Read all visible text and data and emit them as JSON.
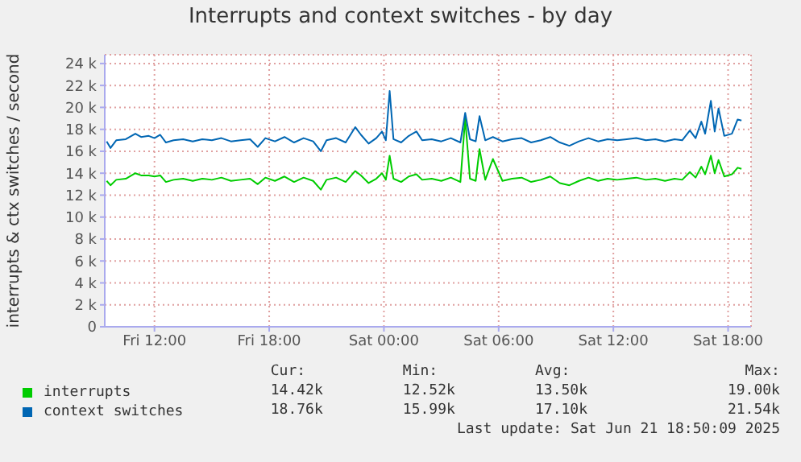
{
  "chart_data": {
    "type": "line",
    "title": "Interrupts and context switches - by day",
    "ylabel": "interrupts & ctx switches / second",
    "x": [
      "2025-06-20T09:30",
      "2025-06-20T09:42",
      "2025-06-20T10:00",
      "2025-06-20T10:30",
      "2025-06-20T11:00",
      "2025-06-20T11:18",
      "2025-06-20T11:42",
      "2025-06-20T12:00",
      "2025-06-20T12:18",
      "2025-06-20T12:36",
      "2025-06-20T13:00",
      "2025-06-20T13:30",
      "2025-06-20T14:00",
      "2025-06-20T14:30",
      "2025-06-20T15:00",
      "2025-06-20T15:30",
      "2025-06-20T16:00",
      "2025-06-20T16:30",
      "2025-06-20T17:00",
      "2025-06-20T17:24",
      "2025-06-20T17:48",
      "2025-06-20T18:18",
      "2025-06-20T18:48",
      "2025-06-20T19:18",
      "2025-06-20T19:48",
      "2025-06-20T20:18",
      "2025-06-20T20:42",
      "2025-06-20T21:00",
      "2025-06-20T21:30",
      "2025-06-20T22:00",
      "2025-06-20T22:30",
      "2025-06-20T22:48",
      "2025-06-20T23:12",
      "2025-06-20T23:36",
      "2025-06-20T23:54",
      "2025-06-21T00:06",
      "2025-06-21T00:18",
      "2025-06-21T00:30",
      "2025-06-21T00:54",
      "2025-06-21T01:18",
      "2025-06-21T01:42",
      "2025-06-21T02:00",
      "2025-06-21T02:30",
      "2025-06-21T03:00",
      "2025-06-21T03:30",
      "2025-06-21T04:00",
      "2025-06-21T04:15",
      "2025-06-21T04:30",
      "2025-06-21T04:48",
      "2025-06-21T05:00",
      "2025-06-21T05:18",
      "2025-06-21T05:42",
      "2025-06-21T06:12",
      "2025-06-21T06:42",
      "2025-06-21T07:12",
      "2025-06-21T07:42",
      "2025-06-21T08:12",
      "2025-06-21T08:42",
      "2025-06-21T09:12",
      "2025-06-21T09:42",
      "2025-06-21T10:12",
      "2025-06-21T10:42",
      "2025-06-21T11:12",
      "2025-06-21T11:42",
      "2025-06-21T12:12",
      "2025-06-21T12:42",
      "2025-06-21T13:12",
      "2025-06-21T13:42",
      "2025-06-21T14:12",
      "2025-06-21T14:42",
      "2025-06-21T15:12",
      "2025-06-21T15:36",
      "2025-06-21T16:00",
      "2025-06-21T16:18",
      "2025-06-21T16:36",
      "2025-06-21T16:48",
      "2025-06-21T17:06",
      "2025-06-21T17:18",
      "2025-06-21T17:30",
      "2025-06-21T17:48",
      "2025-06-21T18:12",
      "2025-06-21T18:30",
      "2025-06-21T18:42"
    ],
    "series": [
      {
        "name": "interrupts",
        "color": "#00cc00",
        "values": [
          13.3,
          12.9,
          13.4,
          13.5,
          14.0,
          13.8,
          13.8,
          13.7,
          13.8,
          13.2,
          13.4,
          13.5,
          13.3,
          13.5,
          13.4,
          13.6,
          13.3,
          13.4,
          13.5,
          13.0,
          13.6,
          13.3,
          13.7,
          13.2,
          13.6,
          13.3,
          12.5,
          13.4,
          13.6,
          13.2,
          14.2,
          13.8,
          13.1,
          13.5,
          14.0,
          13.4,
          15.6,
          13.5,
          13.2,
          13.7,
          13.9,
          13.4,
          13.5,
          13.3,
          13.6,
          13.2,
          19.0,
          13.5,
          13.3,
          16.2,
          13.4,
          15.3,
          13.3,
          13.5,
          13.6,
          13.2,
          13.4,
          13.7,
          13.1,
          12.9,
          13.3,
          13.6,
          13.3,
          13.5,
          13.4,
          13.5,
          13.6,
          13.4,
          13.5,
          13.3,
          13.5,
          13.4,
          14.1,
          13.6,
          14.6,
          13.9,
          15.6,
          14.0,
          15.2,
          13.7,
          13.9,
          14.5,
          14.4
        ]
      },
      {
        "name": "context switches",
        "color": "#0066b3",
        "values": [
          16.9,
          16.3,
          17.0,
          17.1,
          17.6,
          17.3,
          17.4,
          17.2,
          17.5,
          16.8,
          17.0,
          17.1,
          16.9,
          17.1,
          17.0,
          17.2,
          16.9,
          17.0,
          17.1,
          16.4,
          17.2,
          16.9,
          17.3,
          16.8,
          17.2,
          16.9,
          16.0,
          17.0,
          17.2,
          16.8,
          18.2,
          17.5,
          16.7,
          17.2,
          17.8,
          17.0,
          21.5,
          17.1,
          16.8,
          17.4,
          17.8,
          17.0,
          17.1,
          16.9,
          17.2,
          16.8,
          19.5,
          17.1,
          16.9,
          19.2,
          17.0,
          17.3,
          16.9,
          17.1,
          17.2,
          16.8,
          17.0,
          17.3,
          16.8,
          16.5,
          16.9,
          17.2,
          16.9,
          17.1,
          17.0,
          17.1,
          17.2,
          17.0,
          17.1,
          16.9,
          17.1,
          17.0,
          17.9,
          17.2,
          18.7,
          17.6,
          20.6,
          17.8,
          19.9,
          17.4,
          17.6,
          18.9,
          18.8
        ]
      }
    ],
    "xlim": [
      "2025-06-20T09:24",
      "2025-06-21T19:12"
    ],
    "xticks": [
      {
        "value": "2025-06-20T12:00",
        "label": "Fri 12:00"
      },
      {
        "value": "2025-06-20T18:00",
        "label": "Fri 18:00"
      },
      {
        "value": "2025-06-21T00:00",
        "label": "Sat 00:00"
      },
      {
        "value": "2025-06-21T06:00",
        "label": "Sat 06:00"
      },
      {
        "value": "2025-06-21T12:00",
        "label": "Sat 12:00"
      },
      {
        "value": "2025-06-21T18:00",
        "label": "Sat 18:00"
      }
    ],
    "ylim": [
      0,
      24.8
    ],
    "yticks": [
      0,
      {
        "value": 2,
        "label": "2 k"
      },
      {
        "value": 4,
        "label": "4 k"
      },
      {
        "value": 6,
        "label": "6 k"
      },
      {
        "value": 8,
        "label": "8 k"
      },
      {
        "value": 10,
        "label": "10 k"
      },
      {
        "value": 12,
        "label": "12 k"
      },
      {
        "value": 14,
        "label": "14 k"
      },
      {
        "value": 16,
        "label": "16 k"
      },
      {
        "value": 18,
        "label": "18 k"
      },
      {
        "value": 20,
        "label": "20 k"
      },
      {
        "value": 22,
        "label": "22 k"
      },
      {
        "value": 24,
        "label": "24 k"
      }
    ],
    "grid": true,
    "legend": "bottom",
    "annotations": [
      "Cur:",
      "Min:",
      "Avg:",
      "Max:",
      "14.42k",
      "12.52k",
      "13.50k",
      "19.00k",
      "18.76k",
      "15.99k",
      "17.10k",
      "21.54k",
      "Last update: Sat Jun 21 18:50:09 2025"
    ]
  }
}
